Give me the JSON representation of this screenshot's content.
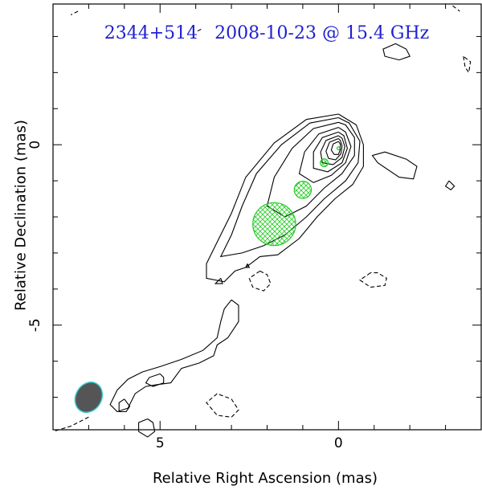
{
  "chart_data": {
    "type": "contour",
    "title": "2344+514   2008-10-23 @ 15.4 GHz",
    "xlabel": "Relative Right Ascension (mas)",
    "ylabel": "Relative Declination (mas)",
    "x_axis": {
      "range": [
        8.0,
        -4.0
      ],
      "major_ticks": [
        5,
        0
      ],
      "reversed": true
    },
    "y_axis": {
      "range": [
        -7.9,
        3.9
      ],
      "major_ticks": [
        0,
        -5
      ]
    },
    "beam": {
      "center": [
        7.0,
        -7.0
      ],
      "major_mas": 0.88,
      "minor_mas": 0.72,
      "pa_deg": 30
    },
    "model_components": [
      {
        "x": 0.0,
        "y": -0.1,
        "size_mas": 0.08
      },
      {
        "x": 0.4,
        "y": -0.5,
        "size_mas": 0.22
      },
      {
        "x": 1.0,
        "y": -1.25,
        "size_mas": 0.48
      },
      {
        "x": 1.8,
        "y": -2.2,
        "size_mas": 1.2
      }
    ],
    "contours": {
      "positive": [
        [
          [
            0.0,
            0.85
          ],
          [
            0.9,
            0.7
          ],
          [
            1.8,
            0.05
          ],
          [
            2.6,
            -0.9
          ],
          [
            3.0,
            -1.9
          ],
          [
            3.4,
            -2.7
          ],
          [
            3.7,
            -3.3
          ],
          [
            3.7,
            -3.7
          ],
          [
            3.2,
            -3.8
          ],
          [
            2.9,
            -3.5
          ],
          [
            2.6,
            -3.4
          ],
          [
            2.2,
            -3.1
          ],
          [
            1.7,
            -3.05
          ],
          [
            1.1,
            -2.6
          ],
          [
            0.6,
            -2.0
          ],
          [
            0.1,
            -1.5
          ],
          [
            -0.4,
            -1.1
          ],
          [
            -0.7,
            -0.6
          ],
          [
            -0.7,
            0.0
          ],
          [
            -0.5,
            0.55
          ],
          [
            0.0,
            0.85
          ]
        ],
        [
          [
            0.0,
            0.75
          ],
          [
            0.8,
            0.6
          ],
          [
            1.6,
            0.0
          ],
          [
            2.3,
            -0.8
          ],
          [
            2.7,
            -1.7
          ],
          [
            3.0,
            -2.5
          ],
          [
            3.3,
            -3.1
          ],
          [
            2.7,
            -3.0
          ],
          [
            2.1,
            -2.8
          ],
          [
            1.5,
            -2.5
          ],
          [
            0.9,
            -2.0
          ],
          [
            0.4,
            -1.5
          ],
          [
            -0.2,
            -1.0
          ],
          [
            -0.55,
            -0.5
          ],
          [
            -0.6,
            0.1
          ],
          [
            -0.3,
            0.6
          ],
          [
            0.0,
            0.75
          ]
        ],
        [
          [
            0.0,
            0.62
          ],
          [
            0.7,
            0.45
          ],
          [
            1.3,
            -0.1
          ],
          [
            1.8,
            -0.9
          ],
          [
            2.0,
            -1.7
          ],
          [
            1.5,
            -2.0
          ],
          [
            0.9,
            -1.7
          ],
          [
            0.4,
            -1.2
          ],
          [
            -0.1,
            -0.8
          ],
          [
            -0.45,
            -0.3
          ],
          [
            -0.45,
            0.2
          ],
          [
            -0.2,
            0.55
          ],
          [
            0.0,
            0.62
          ]
        ],
        [
          [
            0.0,
            0.48
          ],
          [
            0.55,
            0.3
          ],
          [
            0.95,
            -0.2
          ],
          [
            1.1,
            -0.8
          ],
          [
            0.7,
            -1.05
          ],
          [
            0.2,
            -0.85
          ],
          [
            -0.2,
            -0.5
          ],
          [
            -0.35,
            -0.05
          ],
          [
            -0.2,
            0.35
          ],
          [
            0.0,
            0.48
          ]
        ],
        [
          [
            0.0,
            0.35
          ],
          [
            0.45,
            0.2
          ],
          [
            0.7,
            -0.2
          ],
          [
            0.7,
            -0.65
          ],
          [
            0.3,
            -0.75
          ],
          [
            -0.1,
            -0.5
          ],
          [
            -0.25,
            -0.1
          ],
          [
            -0.15,
            0.25
          ],
          [
            0.0,
            0.35
          ]
        ],
        [
          [
            0.0,
            0.25
          ],
          [
            0.35,
            0.12
          ],
          [
            0.5,
            -0.2
          ],
          [
            0.45,
            -0.5
          ],
          [
            0.15,
            -0.55
          ],
          [
            -0.1,
            -0.35
          ],
          [
            -0.18,
            -0.05
          ],
          [
            -0.1,
            0.18
          ],
          [
            0.0,
            0.25
          ]
        ],
        [
          [
            0.0,
            0.17
          ],
          [
            0.25,
            0.07
          ],
          [
            0.35,
            -0.18
          ],
          [
            0.28,
            -0.38
          ],
          [
            0.08,
            -0.42
          ],
          [
            -0.07,
            -0.25
          ],
          [
            -0.1,
            -0.03
          ],
          [
            -0.05,
            0.12
          ],
          [
            0.0,
            0.17
          ]
        ],
        [
          [
            0.0,
            0.09
          ],
          [
            0.15,
            0.02
          ],
          [
            0.2,
            -0.15
          ],
          [
            0.12,
            -0.27
          ],
          [
            0.0,
            -0.27
          ],
          [
            -0.05,
            -0.13
          ],
          [
            -0.05,
            0.02
          ],
          [
            0.0,
            0.09
          ]
        ],
        [
          [
            -1.3,
            -0.2
          ],
          [
            -1.9,
            -0.4
          ],
          [
            -2.2,
            -0.6
          ],
          [
            -2.1,
            -0.95
          ],
          [
            -1.7,
            -0.9
          ],
          [
            -1.1,
            -0.5
          ],
          [
            -0.95,
            -0.3
          ],
          [
            -1.3,
            -0.2
          ]
        ],
        [
          [
            3.0,
            -4.3
          ],
          [
            3.2,
            -4.55
          ],
          [
            3.3,
            -4.9
          ],
          [
            3.4,
            -5.35
          ],
          [
            3.8,
            -5.7
          ],
          [
            4.4,
            -5.95
          ],
          [
            5.0,
            -6.15
          ],
          [
            5.5,
            -6.3
          ],
          [
            5.9,
            -6.5
          ],
          [
            6.2,
            -6.8
          ],
          [
            6.4,
            -7.2
          ],
          [
            6.2,
            -7.4
          ],
          [
            5.9,
            -7.3
          ],
          [
            5.7,
            -6.9
          ],
          [
            5.4,
            -6.7
          ],
          [
            5.1,
            -6.65
          ],
          [
            4.7,
            -6.6
          ],
          [
            4.4,
            -6.2
          ],
          [
            3.9,
            -6.05
          ],
          [
            3.5,
            -5.85
          ],
          [
            3.4,
            -5.55
          ],
          [
            3.1,
            -5.35
          ],
          [
            2.8,
            -4.9
          ],
          [
            2.8,
            -4.45
          ],
          [
            3.0,
            -4.3
          ]
        ],
        [
          [
            5.0,
            -6.35
          ],
          [
            5.3,
            -6.45
          ],
          [
            5.4,
            -6.6
          ],
          [
            5.2,
            -6.7
          ],
          [
            4.9,
            -6.6
          ],
          [
            4.9,
            -6.45
          ],
          [
            5.0,
            -6.35
          ]
        ],
        [
          [
            6.0,
            -7.05
          ],
          [
            6.15,
            -7.15
          ],
          [
            6.15,
            -7.4
          ],
          [
            5.95,
            -7.4
          ],
          [
            5.85,
            -7.25
          ],
          [
            6.0,
            -7.05
          ]
        ],
        [
          [
            5.35,
            -7.6
          ],
          [
            5.6,
            -7.7
          ],
          [
            5.6,
            -7.95
          ],
          [
            5.35,
            -8.1
          ],
          [
            5.15,
            -7.95
          ],
          [
            5.2,
            -7.7
          ],
          [
            5.35,
            -7.6
          ]
        ],
        [
          [
            -1.6,
            2.8
          ],
          [
            -1.9,
            2.65
          ],
          [
            -2.0,
            2.45
          ],
          [
            -1.7,
            2.35
          ],
          [
            -1.3,
            2.45
          ],
          [
            -1.25,
            2.65
          ],
          [
            -1.6,
            2.8
          ]
        ],
        [
          [
            -3.1,
            -1.0
          ],
          [
            -3.25,
            -1.15
          ],
          [
            -3.15,
            -1.25
          ],
          [
            -3.0,
            -1.15
          ],
          [
            -3.1,
            -1.0
          ]
        ],
        [
          [
            3.3,
            -3.7
          ],
          [
            3.45,
            -3.85
          ],
          [
            3.25,
            -3.85
          ],
          [
            3.3,
            -3.7
          ]
        ],
        [
          [
            2.55,
            -3.3
          ],
          [
            2.6,
            -3.4
          ],
          [
            2.5,
            -3.4
          ],
          [
            2.55,
            -3.3
          ]
        ]
      ],
      "negative": [
        [
          [
            2.2,
            -3.5
          ],
          [
            2.5,
            -3.7
          ],
          [
            2.4,
            -3.95
          ],
          [
            2.1,
            -4.05
          ],
          [
            1.9,
            -3.85
          ],
          [
            2.0,
            -3.6
          ],
          [
            2.2,
            -3.5
          ]
        ],
        [
          [
            -0.9,
            -3.55
          ],
          [
            -0.6,
            -3.75
          ],
          [
            -0.9,
            -3.95
          ],
          [
            -1.3,
            -3.9
          ],
          [
            -1.35,
            -3.7
          ],
          [
            -1.1,
            -3.55
          ],
          [
            -0.9,
            -3.55
          ]
        ],
        [
          [
            3.4,
            -6.9
          ],
          [
            3.7,
            -7.15
          ],
          [
            3.4,
            -7.5
          ],
          [
            3.0,
            -7.55
          ],
          [
            2.8,
            -7.35
          ],
          [
            3.0,
            -7.05
          ],
          [
            3.4,
            -6.9
          ]
        ],
        [
          [
            -3.5,
            2.45
          ],
          [
            -3.55,
            2.15
          ],
          [
            -3.65,
            2.0
          ],
          [
            -3.7,
            2.3
          ],
          [
            -3.5,
            2.45
          ]
        ],
        [
          [
            7.0,
            -7.55
          ],
          [
            7.5,
            -7.8
          ],
          [
            8.0,
            -7.95
          ]
        ],
        [
          [
            -3.2,
            3.85
          ],
          [
            -3.4,
            3.7
          ]
        ],
        [
          [
            7.3,
            3.7
          ],
          [
            7.5,
            3.6
          ]
        ],
        [
          [
            3.85,
            3.2
          ],
          [
            3.95,
            3.15
          ]
        ]
      ]
    }
  }
}
